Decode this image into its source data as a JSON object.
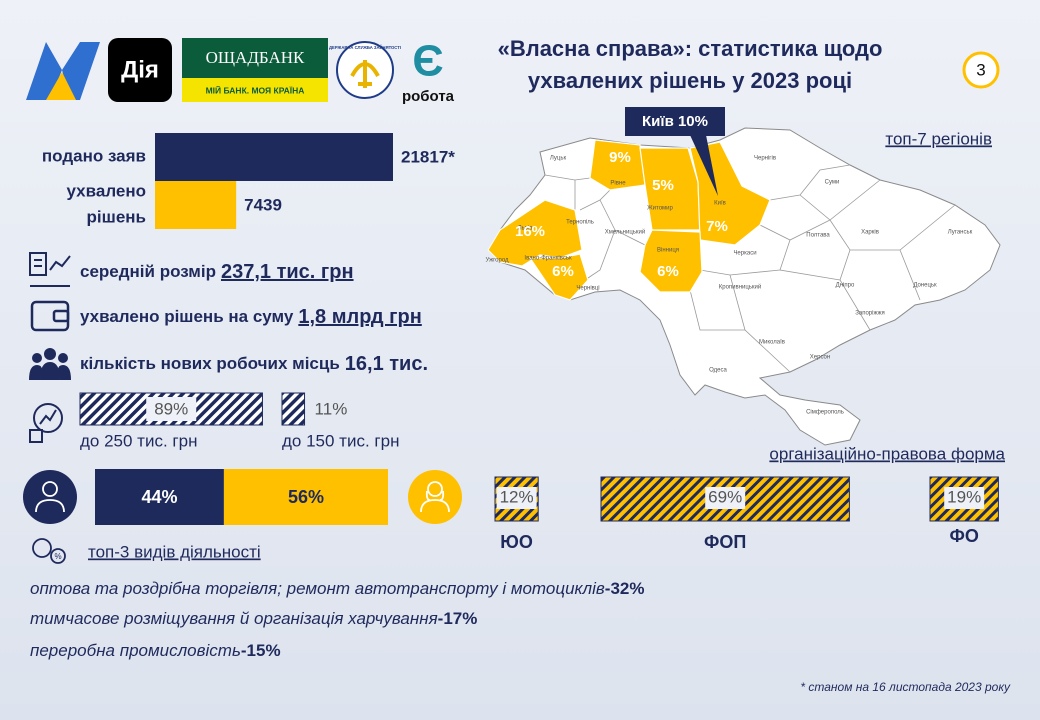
{
  "logos": {
    "diia": "Дія",
    "oschadbank": "ОЩАДБАНК",
    "oschadbank_slogan": "МІЙ БАНК. МОЯ КРАЇНА",
    "employment_service": "ДЕРЖАВНА СЛУЖБА ЗАЙНЯТОСТІ",
    "robota_letter": "Є",
    "robota": "робота"
  },
  "header": {
    "title_lines": [
      "«Власна справа»: статистика щодо",
      "ухвалених рішень у 2023 році"
    ],
    "page_number": "3"
  },
  "applications": [
    {
      "label_lines": [
        "подано заяв"
      ],
      "value": 21817,
      "value_label": "21817*",
      "color": "#1f2a5c"
    },
    {
      "label_lines": [
        "ухвалено",
        "рішень"
      ],
      "value": 7439,
      "value_label": "7439",
      "color": "#ffc000"
    }
  ],
  "stats": [
    {
      "text": "середній розмір",
      "value": "237,1 тис. грн",
      "underline": true
    },
    {
      "text": "ухвалено рішень на суму",
      "value": "1,8 млрд грн",
      "underline": true
    },
    {
      "text": "кількість нових робочих місць",
      "value": "16,1 тис.",
      "underline": false
    }
  ],
  "loan_size": [
    {
      "value": 89,
      "value_label": "89%",
      "label": "до 250 тис. грн"
    },
    {
      "value": 11,
      "value_label": "11%",
      "label": "до 150 тис. грн"
    }
  ],
  "gender": [
    {
      "value": 44,
      "value_label": "44%",
      "color": "#1f2a5c"
    },
    {
      "value": 56,
      "value_label": "56%",
      "color": "#ffc000"
    }
  ],
  "legal_form": {
    "title": "організаційно-правова форма",
    "items": [
      {
        "name": "ЮО",
        "value": 12,
        "value_label": "12%"
      },
      {
        "name": "ФОП",
        "value": 69,
        "value_label": "69%"
      },
      {
        "name": "ФО",
        "value": 19,
        "value_label": "19%"
      }
    ]
  },
  "activities": {
    "title": "топ-3 видів діяльності",
    "items": [
      {
        "text": "оптова та роздрібна торгівля; ремонт автотранспорту і мотоциклів",
        "share": "-32%"
      },
      {
        "text": "тимчасове розміщування й організація харчування",
        "share": "-17%"
      },
      {
        "text": "переробна промисловість",
        "share": "-15%"
      }
    ]
  },
  "map": {
    "title": "топ-7 регіонів",
    "callout": "Київ 10%",
    "regions": [
      {
        "value": 9,
        "value_label": "9%"
      },
      {
        "value": 5,
        "value_label": "5%"
      },
      {
        "value": 7,
        "value_label": "7%"
      },
      {
        "value": 16,
        "value_label": "16%"
      },
      {
        "value": 6,
        "value_label": "6%"
      },
      {
        "value": 6,
        "value_label": "6%"
      }
    ],
    "cities": [
      "Луцьк",
      "Рівне",
      "Житомир",
      "Київ",
      "Чернігів",
      "Суми",
      "Харків",
      "Луганськ",
      "Донецьк",
      "Полтава",
      "Черкаси",
      "Кропивницький",
      "Дніпро",
      "Запоріжжя",
      "Херсон",
      "Миколаїв",
      "Одеса",
      "Сімферополь",
      "Вінниця",
      "Хмельницький",
      "Тернопіль",
      "Львів",
      "Івано-Франківськ",
      "Чернівці",
      "Ужгород"
    ]
  },
  "footnote": "* станом на 16 листопада 2023 року"
}
